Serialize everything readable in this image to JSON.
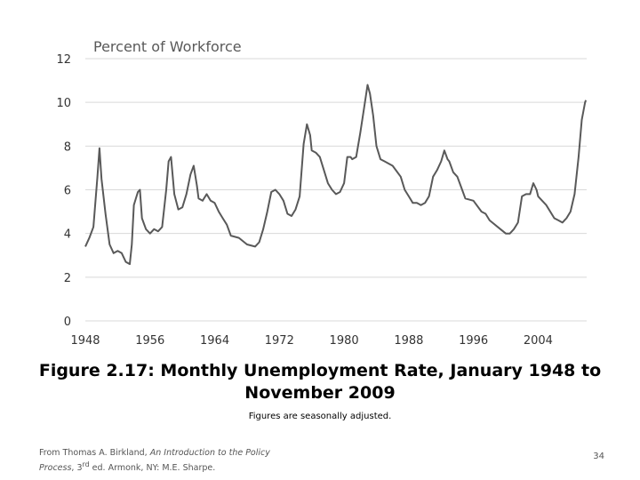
{
  "caption": {
    "line1": "Figure 2.17: Monthly Unemployment Rate, January 1948 to",
    "line2": "November 2009"
  },
  "note": "Figures are seasonally adjusted.",
  "source": {
    "prefix": "From Thomas A. Birkland, ",
    "book_title": "An Introduction to the Policy Process",
    "suffix_pre": ", 3",
    "sup": "rd",
    "suffix_post": " ed. Armonk, NY: M.E. Sharpe."
  },
  "page_number": "34",
  "chart_data": {
    "type": "line",
    "title": "",
    "ylabel": "Percent of Workforce",
    "xlabel": "",
    "xlim": [
      1948,
      2010
    ],
    "ylim": [
      0,
      12
    ],
    "x_ticks": [
      "1948",
      "1956",
      "1964",
      "1972",
      "1980",
      "1988",
      "1996",
      "2004"
    ],
    "y_ticks": [
      "0",
      "2",
      "4",
      "6",
      "8",
      "10",
      "12"
    ],
    "grid": "horizontal",
    "line_color": "#595959",
    "grid_color": "#d9d9d9",
    "series": [
      {
        "x": [
          1948.0,
          1948.5,
          1949.0,
          1949.5,
          1949.75,
          1950.0,
          1950.5,
          1951.0,
          1951.5,
          1952.0,
          1952.5,
          1953.0,
          1953.5,
          1953.75,
          1954.0,
          1954.5,
          1954.75,
          1955.0,
          1955.5,
          1956.0,
          1956.5,
          1957.0,
          1957.5,
          1958.0,
          1958.3,
          1958.6,
          1959.0,
          1959.5,
          1960.0,
          1960.5,
          1961.0,
          1961.4,
          1961.8,
          1962.0,
          1962.5,
          1963.0,
          1963.5,
          1964.0,
          1964.5,
          1965.0,
          1965.5,
          1966.0,
          1967.0,
          1968.0,
          1969.0,
          1969.5,
          1970.0,
          1970.5,
          1971.0,
          1971.5,
          1972.0,
          1972.5,
          1973.0,
          1973.5,
          1974.0,
          1974.5,
          1975.0,
          1975.4,
          1975.8,
          1976.0,
          1976.5,
          1977.0,
          1977.5,
          1978.0,
          1978.5,
          1979.0,
          1979.5,
          1980.0,
          1980.4,
          1980.8,
          1981.0,
          1981.5,
          1982.0,
          1982.5,
          1982.9,
          1983.2,
          1983.6,
          1984.0,
          1984.5,
          1985.0,
          1986.0,
          1987.0,
          1987.5,
          1988.0,
          1988.5,
          1989.0,
          1989.5,
          1990.0,
          1990.5,
          1991.0,
          1991.5,
          1992.0,
          1992.4,
          1992.8,
          1993.0,
          1993.5,
          1994.0,
          1994.5,
          1995.0,
          1996.0,
          1997.0,
          1997.5,
          1998.0,
          1999.0,
          2000.0,
          2000.5,
          2001.0,
          2001.5,
          2002.0,
          2002.5,
          2003.0,
          2003.4,
          2003.8,
          2004.0,
          2005.0,
          2006.0,
          2006.5,
          2007.0,
          2007.5,
          2008.0,
          2008.5,
          2009.0,
          2009.4,
          2009.8,
          2009.9
        ],
        "y": [
          3.4,
          3.8,
          4.3,
          6.6,
          7.9,
          6.5,
          4.9,
          3.5,
          3.1,
          3.2,
          3.1,
          2.7,
          2.6,
          3.5,
          5.3,
          5.9,
          6.0,
          4.7,
          4.2,
          4.0,
          4.2,
          4.1,
          4.3,
          6.0,
          7.3,
          7.5,
          5.8,
          5.1,
          5.2,
          5.8,
          6.7,
          7.1,
          6.2,
          5.6,
          5.5,
          5.8,
          5.5,
          5.4,
          5.0,
          4.7,
          4.4,
          3.9,
          3.8,
          3.5,
          3.4,
          3.6,
          4.2,
          5.0,
          5.9,
          6.0,
          5.8,
          5.5,
          4.9,
          4.8,
          5.1,
          5.7,
          8.1,
          9.0,
          8.5,
          7.8,
          7.7,
          7.5,
          6.9,
          6.3,
          6.0,
          5.8,
          5.9,
          6.3,
          7.5,
          7.5,
          7.4,
          7.5,
          8.6,
          9.8,
          10.8,
          10.4,
          9.4,
          8.0,
          7.4,
          7.3,
          7.1,
          6.6,
          6.0,
          5.7,
          5.4,
          5.4,
          5.3,
          5.4,
          5.7,
          6.6,
          6.9,
          7.3,
          7.8,
          7.4,
          7.3,
          6.8,
          6.6,
          6.1,
          5.6,
          5.5,
          5.0,
          4.9,
          4.6,
          4.3,
          4.0,
          4.0,
          4.2,
          4.5,
          5.7,
          5.8,
          5.8,
          6.3,
          6.0,
          5.7,
          5.3,
          4.7,
          4.6,
          4.5,
          4.7,
          5.0,
          5.8,
          7.5,
          9.2,
          10.0,
          10.1
        ]
      }
    ]
  }
}
